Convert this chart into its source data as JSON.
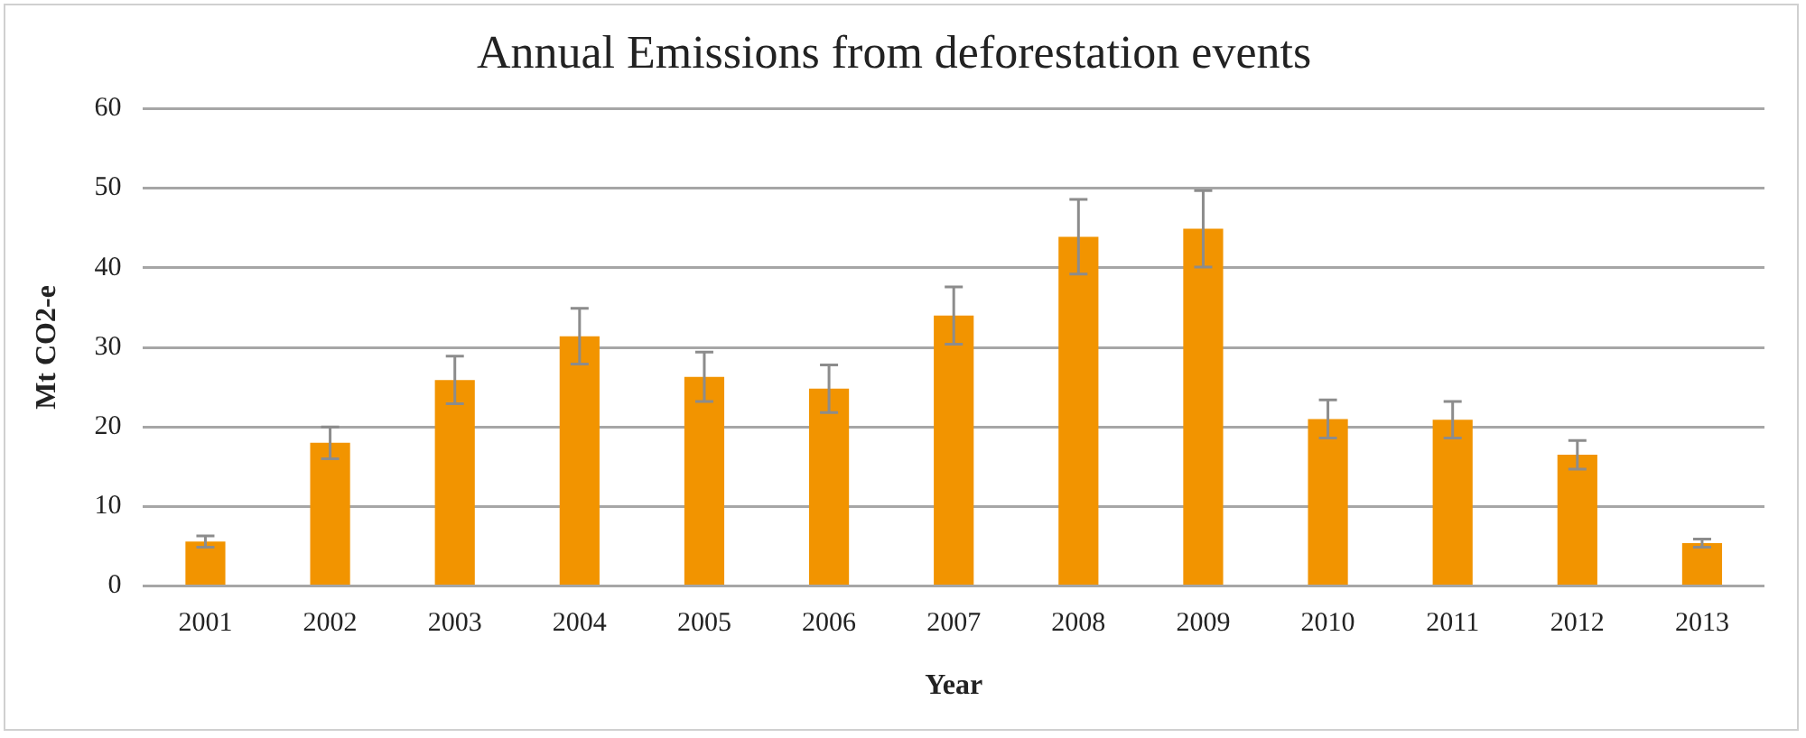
{
  "chart_data": {
    "type": "bar",
    "title": "Annual Emissions from deforestation events",
    "xlabel": "Year",
    "ylabel": "Mt CO2-e",
    "categories": [
      "2001",
      "2002",
      "2003",
      "2004",
      "2005",
      "2006",
      "2007",
      "2008",
      "2009",
      "2010",
      "2011",
      "2012",
      "2013"
    ],
    "values": [
      5.6,
      18.0,
      25.9,
      31.4,
      26.3,
      24.8,
      34.0,
      43.9,
      44.9,
      21.0,
      20.9,
      16.5,
      5.4
    ],
    "errors": [
      0.7,
      2.0,
      3.0,
      3.5,
      3.1,
      3.0,
      3.6,
      4.7,
      4.8,
      2.4,
      2.3,
      1.8,
      0.5
    ],
    "color": "#f29400",
    "ylim": [
      0,
      60
    ],
    "yticks": [
      0,
      10,
      20,
      30,
      40,
      50,
      60
    ],
    "grid": "y",
    "legend": false
  }
}
